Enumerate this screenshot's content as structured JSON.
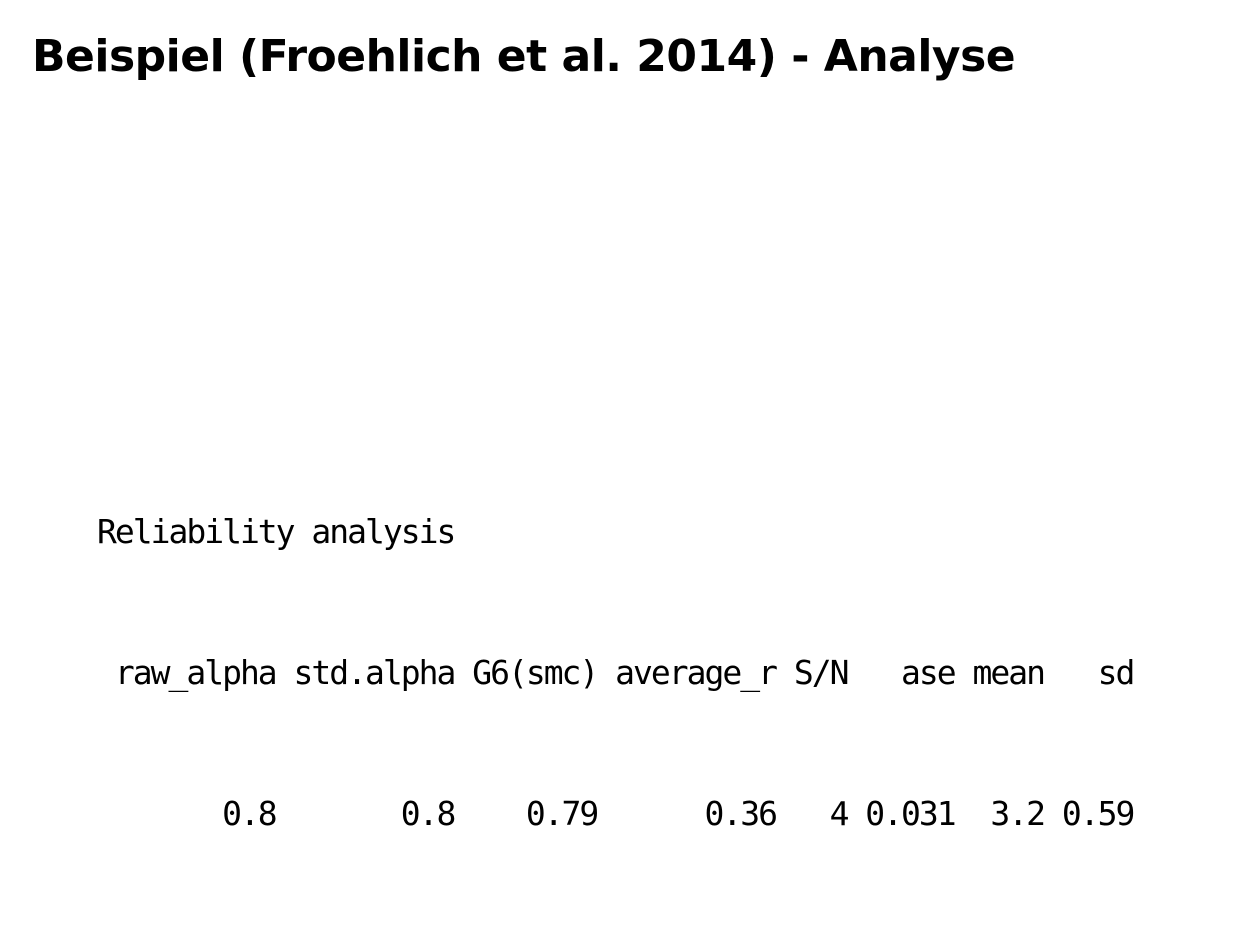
{
  "slide": {
    "title": "Beispiel (Froehlich et al. 2014) - Analyse"
  },
  "output": {
    "heading": "Reliability analysis",
    "header_row": " raw_alpha std.alpha G6(smc) average_r S/N   ase mean   sd",
    "value_row": "       0.8       0.8    0.79      0.36   4 0.031  3.2 0.59",
    "columns": [
      "raw_alpha",
      "std.alpha",
      "G6(smc)",
      "average_r",
      "S/N",
      "ase",
      "mean",
      "sd"
    ],
    "values": [
      "0.8",
      "0.8",
      "0.79",
      "0.36",
      "4",
      "0.031",
      "3.2",
      "0.59"
    ]
  }
}
